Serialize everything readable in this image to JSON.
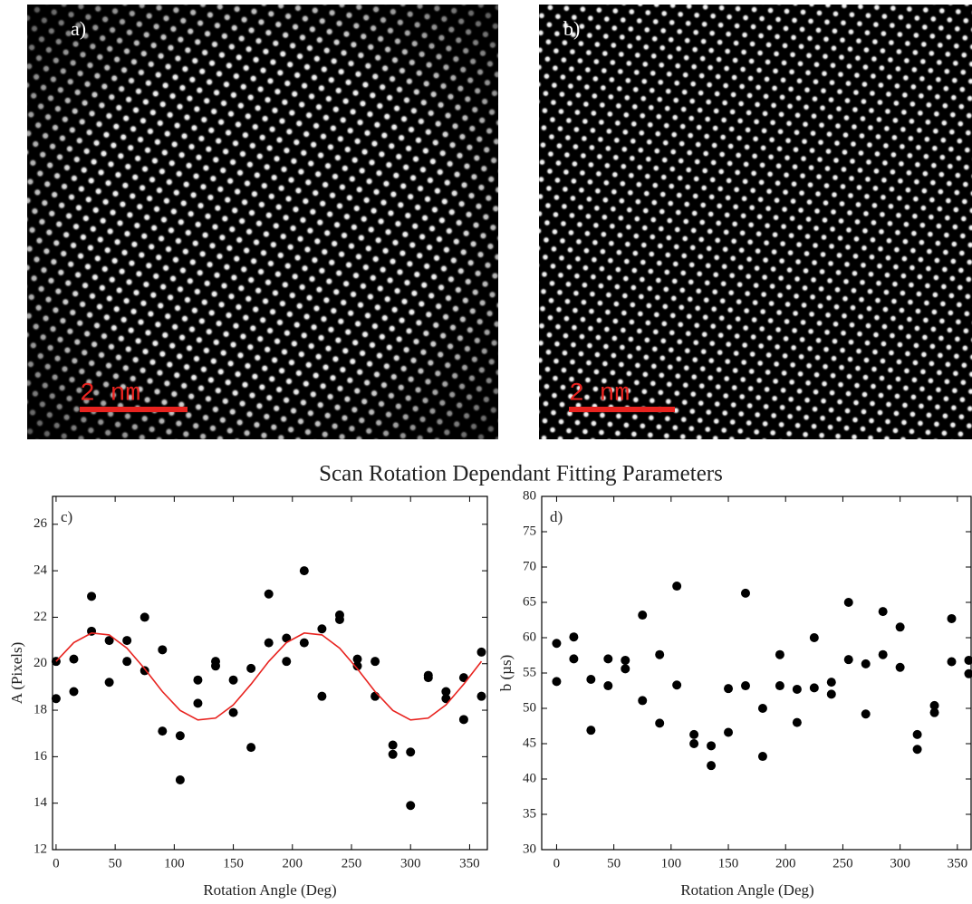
{
  "images": [
    {
      "label": "a)",
      "scale_bar": "2 nm"
    },
    {
      "label": "b)",
      "scale_bar": "2 nm"
    }
  ],
  "figure_title": "Scan Rotation Dependant Fitting Parameters",
  "chart_data": [
    {
      "type": "scatter",
      "label": "c)",
      "xlabel": "Rotation Angle (Deg)",
      "ylabel": "A (Pixels)",
      "xlim": [
        -3,
        365
      ],
      "ylim": [
        12,
        27.2
      ],
      "xticks": [
        0,
        50,
        100,
        150,
        200,
        250,
        300,
        350
      ],
      "yticks": [
        12,
        14,
        16,
        18,
        20,
        22,
        24,
        26
      ],
      "series": [
        {
          "color": "#000000",
          "x": [
            0,
            0,
            15,
            15,
            30,
            30,
            45,
            45,
            60,
            60,
            75,
            75,
            90,
            90,
            105,
            105,
            120,
            120,
            135,
            135,
            150,
            150,
            165,
            165,
            180,
            180,
            195,
            195,
            210,
            210,
            225,
            225,
            240,
            240,
            255,
            255,
            270,
            270,
            285,
            285,
            300,
            300,
            315,
            315,
            330,
            330,
            345,
            345,
            360,
            360
          ],
          "values": [
            20.1,
            18.5,
            20.2,
            18.8,
            22.9,
            21.4,
            21.0,
            19.2,
            21.0,
            20.1,
            22.0,
            19.7,
            20.6,
            17.1,
            16.9,
            15.0,
            19.3,
            18.3,
            20.1,
            19.9,
            19.3,
            17.9,
            19.8,
            16.4,
            23.0,
            20.9,
            21.1,
            20.1,
            24.0,
            20.9,
            21.5,
            18.6,
            22.1,
            21.9,
            20.2,
            19.9,
            20.1,
            18.6,
            16.5,
            16.1,
            16.2,
            13.9,
            19.5,
            19.4,
            18.8,
            18.5,
            19.4,
            17.6,
            20.5,
            18.6
          ]
        },
        {
          "type": "line",
          "color": "#e8231f",
          "x": [
            0,
            15,
            30,
            45,
            60,
            75,
            90,
            105,
            120,
            135,
            150,
            165,
            180,
            195,
            210,
            225,
            240,
            255,
            270,
            285,
            300,
            315,
            330,
            345,
            360
          ],
          "values": [
            20.1,
            20.91,
            21.32,
            21.24,
            20.67,
            19.78,
            18.8,
            17.99,
            17.58,
            17.66,
            18.23,
            19.12,
            20.1,
            20.91,
            21.32,
            21.24,
            20.67,
            19.78,
            18.8,
            17.99,
            17.58,
            17.66,
            18.23,
            19.12,
            20.1
          ]
        }
      ]
    },
    {
      "type": "scatter",
      "label": "d)",
      "xlabel": "Rotation Angle (Deg)",
      "ylabel": "b (µs)",
      "xlim": [
        -13,
        362
      ],
      "ylim": [
        30,
        80
      ],
      "xticks": [
        0,
        50,
        100,
        150,
        200,
        250,
        300,
        350
      ],
      "yticks": [
        30,
        35,
        40,
        45,
        50,
        55,
        60,
        65,
        70,
        75,
        80
      ],
      "series": [
        {
          "color": "#000000",
          "x": [
            0,
            0,
            15,
            15,
            30,
            30,
            45,
            45,
            60,
            60,
            75,
            75,
            90,
            90,
            105,
            105,
            120,
            120,
            135,
            135,
            150,
            150,
            165,
            165,
            180,
            180,
            195,
            195,
            210,
            210,
            225,
            225,
            240,
            240,
            255,
            255,
            270,
            270,
            285,
            285,
            300,
            300,
            315,
            315,
            330,
            330,
            345,
            345,
            360,
            360
          ],
          "values": [
            59.2,
            53.8,
            60.1,
            57.0,
            54.1,
            46.9,
            57.0,
            53.2,
            56.8,
            55.6,
            63.2,
            51.1,
            57.6,
            47.9,
            67.3,
            53.3,
            46.3,
            45.0,
            44.7,
            41.9,
            52.8,
            46.6,
            66.3,
            53.2,
            50.0,
            43.2,
            57.6,
            53.2,
            52.7,
            48.0,
            60.0,
            52.9,
            53.7,
            52.0,
            65.0,
            56.9,
            56.3,
            49.2,
            63.7,
            57.6,
            61.5,
            55.8,
            46.3,
            44.2,
            50.4,
            49.4,
            62.7,
            56.6,
            56.8,
            54.9
          ]
        }
      ]
    }
  ]
}
